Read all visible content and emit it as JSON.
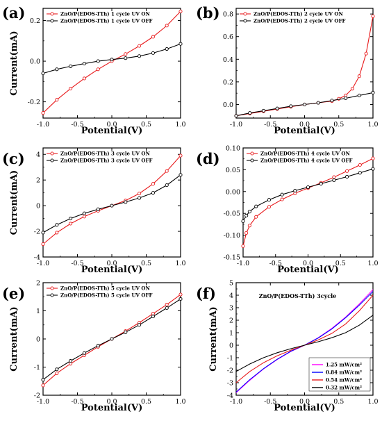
{
  "chart_data": [
    {
      "type": "line",
      "panel_label": "(a)",
      "xlabel": "Potential(V)",
      "ylabel": "Current(mA)",
      "xlim": [
        -1.0,
        1.0
      ],
      "ylim": [
        -0.28,
        0.26
      ],
      "xticks": [
        -1.0,
        -0.5,
        0.0,
        0.5,
        1.0
      ],
      "xtick_labels": [
        "-1.0",
        "-0.5",
        "0.0",
        "0.5",
        "1.0"
      ],
      "yticks": [
        -0.2,
        0.0,
        0.2
      ],
      "ytick_labels": [
        "-0.2",
        "0.0",
        "0.2"
      ],
      "legend_position": "top-left",
      "grid": false,
      "series": [
        {
          "name": "ZnO/P(EDOS-TTh) 1 cycle UV ON",
          "color": "#e8191b",
          "marker": "circle",
          "x": [
            -1.0,
            -0.8,
            -0.6,
            -0.4,
            -0.2,
            0.0,
            0.2,
            0.4,
            0.6,
            0.8,
            1.0
          ],
          "y": [
            -0.255,
            -0.19,
            -0.135,
            -0.085,
            -0.04,
            0.0,
            0.035,
            0.075,
            0.12,
            0.175,
            0.245
          ]
        },
        {
          "name": "ZnO/P(EDOS-TTh) 1 cycle  UV OFF",
          "color": "#000000",
          "marker": "circle",
          "x": [
            -1.0,
            -0.8,
            -0.6,
            -0.4,
            -0.2,
            0.0,
            0.2,
            0.4,
            0.6,
            0.8,
            1.0
          ],
          "y": [
            -0.06,
            -0.04,
            -0.025,
            -0.012,
            0.0,
            0.008,
            0.015,
            0.025,
            0.04,
            0.06,
            0.085
          ]
        }
      ]
    },
    {
      "type": "line",
      "panel_label": "(b)",
      "xlabel": "Potential(V)",
      "ylabel": "",
      "xlim": [
        -1.0,
        1.0
      ],
      "ylim": [
        -0.12,
        0.85
      ],
      "xticks": [
        -1.0,
        -0.5,
        0.0,
        0.5,
        1.0
      ],
      "xtick_labels": [
        "-1.0",
        "-0.5",
        "0.0",
        "0.5",
        "1.0"
      ],
      "yticks": [
        0.0,
        0.2,
        0.4,
        0.6,
        0.8
      ],
      "ytick_labels": [
        "0.0",
        "0.2",
        "0.4",
        "0.6",
        "0.8"
      ],
      "legend_position": "top-left",
      "grid": false,
      "series": [
        {
          "name": "ZnO/P(EDOS-TTh) 2 cycle UV ON",
          "color": "#e8191b",
          "marker": "circle",
          "x": [
            -1.0,
            -0.8,
            -0.6,
            -0.4,
            -0.2,
            0.0,
            0.2,
            0.4,
            0.5,
            0.6,
            0.7,
            0.8,
            0.9,
            1.0
          ],
          "y": [
            -0.1,
            -0.08,
            -0.06,
            -0.04,
            -0.02,
            0.0,
            0.015,
            0.03,
            0.05,
            0.08,
            0.14,
            0.25,
            0.45,
            0.78
          ]
        },
        {
          "name": "ZnO/P(EDOS-TTh) 2 cycle  UV OFF",
          "color": "#000000",
          "marker": "circle",
          "x": [
            -1.0,
            -0.8,
            -0.6,
            -0.4,
            -0.2,
            0.0,
            0.2,
            0.4,
            0.6,
            0.8,
            1.0
          ],
          "y": [
            -0.1,
            -0.075,
            -0.055,
            -0.035,
            -0.015,
            0.0,
            0.015,
            0.035,
            0.055,
            0.08,
            0.105
          ]
        }
      ]
    },
    {
      "type": "line",
      "panel_label": "(c)",
      "xlabel": "Potential(V)",
      "ylabel": "Current(mA)",
      "xlim": [
        -1.0,
        1.0
      ],
      "ylim": [
        -4,
        4.5
      ],
      "xticks": [
        -1.0,
        -0.5,
        0.0,
        0.5,
        1.0
      ],
      "xtick_labels": [
        "-1.0",
        "-0.5",
        "0.0",
        "0.5",
        "1.0"
      ],
      "yticks": [
        -4,
        -2,
        0,
        2,
        4
      ],
      "ytick_labels": [
        "-4",
        "-2",
        "0",
        "2",
        "4"
      ],
      "legend_position": "top-left",
      "grid": false,
      "series": [
        {
          "name": "ZnO/P(EDOS-TTh) 3 cycle UV ON",
          "color": "#e8191b",
          "marker": "circle",
          "x": [
            -1.0,
            -0.8,
            -0.6,
            -0.4,
            -0.2,
            0.0,
            0.2,
            0.4,
            0.6,
            0.8,
            1.0
          ],
          "y": [
            -3.0,
            -2.1,
            -1.4,
            -0.85,
            -0.4,
            0.0,
            0.4,
            0.95,
            1.7,
            2.7,
            3.9
          ]
        },
        {
          "name": "ZnO/P(EDOS-TTh) 3 cycle  UV OFF",
          "color": "#000000",
          "marker": "circle",
          "x": [
            -1.0,
            -0.8,
            -0.6,
            -0.4,
            -0.2,
            0.0,
            0.2,
            0.4,
            0.6,
            0.8,
            1.0
          ],
          "y": [
            -2.1,
            -1.5,
            -1.0,
            -0.6,
            -0.28,
            0.0,
            0.28,
            0.6,
            1.0,
            1.6,
            2.4
          ]
        }
      ]
    },
    {
      "type": "line",
      "panel_label": "(d)",
      "xlabel": "Potential(V)",
      "ylabel": "",
      "xlim": [
        -1.0,
        1.0
      ],
      "ylim": [
        -0.15,
        0.1
      ],
      "xticks": [
        -1.0,
        -0.5,
        0.0,
        0.5,
        1.0
      ],
      "xtick_labels": [
        "-1.0",
        "-0.5",
        "0.0",
        "0.5",
        "1.0"
      ],
      "yticks": [
        -0.15,
        -0.1,
        -0.05,
        0.0,
        0.05,
        0.1
      ],
      "ytick_labels": [
        "-0.15",
        "-0.10",
        "-0.05",
        "0.00",
        "0.05",
        "0.10"
      ],
      "legend_position": "top-left",
      "grid": false,
      "series": [
        {
          "name": "ZnO/P(EDOS-TTh) 4 cycle UV ON",
          "color": "#e8191b",
          "marker": "circle",
          "x": [
            -1.0,
            -0.95,
            -0.9,
            -0.8,
            -0.6,
            -0.4,
            -0.2,
            0.0,
            0.2,
            0.4,
            0.6,
            0.8,
            1.0
          ],
          "y": [
            -0.125,
            -0.095,
            -0.078,
            -0.058,
            -0.035,
            -0.018,
            -0.004,
            0.008,
            0.02,
            0.033,
            0.047,
            0.061,
            0.076
          ]
        },
        {
          "name": "ZnO/P(EDOS-TTh) 4 cycle  UV OFF",
          "color": "#000000",
          "marker": "circle",
          "x": [
            -1.0,
            -0.95,
            -0.9,
            -0.8,
            -0.6,
            -0.4,
            -0.2,
            0.0,
            0.2,
            0.4,
            0.6,
            0.8,
            1.0
          ],
          "y": [
            -0.068,
            -0.055,
            -0.046,
            -0.034,
            -0.019,
            -0.007,
            0.002,
            0.01,
            0.018,
            0.026,
            0.034,
            0.043,
            0.052
          ]
        }
      ]
    },
    {
      "type": "line",
      "panel_label": "(e)",
      "xlabel": "Potential(V)",
      "ylabel": "Current(mA)",
      "xlim": [
        -1.0,
        1.0
      ],
      "ylim": [
        -2,
        2
      ],
      "xticks": [
        -1.0,
        -0.5,
        0.0,
        0.5,
        1.0
      ],
      "xtick_labels": [
        "-1.0",
        "-0.5",
        "0.0",
        "0.5",
        "1.0"
      ],
      "yticks": [
        -2,
        -1,
        0,
        1,
        2
      ],
      "ytick_labels": [
        "-2",
        "-1",
        "0",
        "1",
        "2"
      ],
      "legend_position": "top-left",
      "grid": false,
      "series": [
        {
          "name": "ZnO/P(EDOS-TTh) 5 cycle UV ON",
          "color": "#e8191b",
          "marker": "circle",
          "x": [
            -1.0,
            -0.8,
            -0.6,
            -0.4,
            -0.2,
            0.0,
            0.2,
            0.4,
            0.6,
            0.8,
            1.0
          ],
          "y": [
            -1.65,
            -1.22,
            -0.88,
            -0.58,
            -0.28,
            0.0,
            0.28,
            0.58,
            0.9,
            1.22,
            1.58
          ]
        },
        {
          "name": "ZnO/P(EDOS-TTh) 5 cycle  UV OFF",
          "color": "#000000",
          "marker": "circle",
          "x": [
            -1.0,
            -0.8,
            -0.6,
            -0.4,
            -0.2,
            0.0,
            0.2,
            0.4,
            0.6,
            0.8,
            1.0
          ],
          "y": [
            -1.45,
            -1.08,
            -0.78,
            -0.5,
            -0.24,
            0.0,
            0.24,
            0.5,
            0.8,
            1.1,
            1.42
          ]
        }
      ]
    },
    {
      "type": "line",
      "panel_label": "(f)",
      "annotation": "ZnO/P(EDOS-TTh) 3cycle",
      "xlabel": "Potential(V)",
      "ylabel": "Current(mA)",
      "xlim": [
        -1.0,
        1.0
      ],
      "ylim": [
        -4,
        5
      ],
      "xticks": [
        -1.0,
        -0.5,
        0.0,
        0.5,
        1.0
      ],
      "xtick_labels": [
        "-1.0",
        "-0.5",
        "0.0",
        "0.5",
        "1.0"
      ],
      "yticks": [
        -4,
        -3,
        -2,
        -1,
        0,
        1,
        2,
        3,
        4,
        5
      ],
      "ytick_labels": [
        "-4",
        "-3",
        "-2",
        "-1",
        "0",
        "1",
        "2",
        "3",
        "4",
        "5"
      ],
      "legend_position": "bottom-right",
      "grid": false,
      "series": [
        {
          "name": "1.25 mW/cm²",
          "color": "#ff00ff",
          "marker": "none",
          "x": [
            -1.0,
            -0.8,
            -0.6,
            -0.4,
            -0.2,
            0.0,
            0.2,
            0.4,
            0.6,
            0.8,
            1.0
          ],
          "y": [
            -3.8,
            -2.8,
            -1.9,
            -1.15,
            -0.5,
            0.0,
            0.6,
            1.35,
            2.25,
            3.3,
            4.45
          ]
        },
        {
          "name": "0.84 mW/cm²",
          "color": "#0000ff",
          "marker": "none",
          "x": [
            -1.0,
            -0.8,
            -0.6,
            -0.4,
            -0.2,
            0.0,
            0.2,
            0.4,
            0.6,
            0.8,
            1.0
          ],
          "y": [
            -3.75,
            -2.75,
            -1.88,
            -1.12,
            -0.48,
            0.0,
            0.58,
            1.3,
            2.2,
            3.2,
            4.3
          ]
        },
        {
          "name": "0.54 mW/cm²",
          "color": "#e8191b",
          "marker": "none",
          "x": [
            -1.0,
            -0.8,
            -0.6,
            -0.4,
            -0.2,
            0.0,
            0.2,
            0.4,
            0.6,
            0.8,
            1.0
          ],
          "y": [
            -3.0,
            -2.1,
            -1.4,
            -0.85,
            -0.4,
            0.0,
            0.42,
            0.95,
            1.7,
            2.75,
            4.0
          ]
        },
        {
          "name": "0.32 mW/cm²",
          "color": "#000000",
          "marker": "none",
          "x": [
            -1.0,
            -0.8,
            -0.6,
            -0.4,
            -0.2,
            0.0,
            0.2,
            0.4,
            0.6,
            0.8,
            1.0
          ],
          "y": [
            -2.1,
            -1.5,
            -1.0,
            -0.6,
            -0.28,
            0.0,
            0.28,
            0.6,
            1.0,
            1.6,
            2.4
          ]
        }
      ]
    }
  ]
}
